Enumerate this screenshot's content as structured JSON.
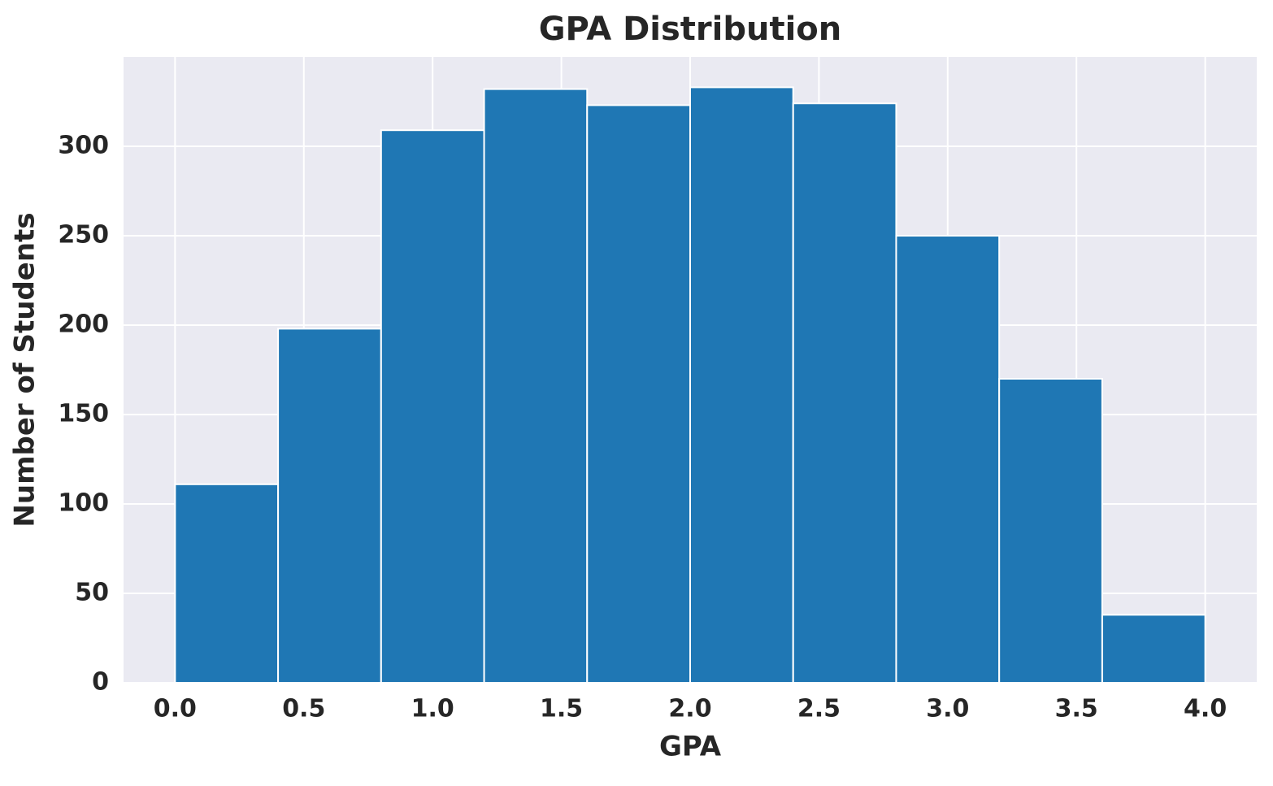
{
  "chart_data": {
    "type": "histogram",
    "title": "GPA Distribution",
    "xlabel": "GPA",
    "ylabel": "Number of Students",
    "bins": [
      0.0,
      0.4,
      0.8,
      1.2,
      1.6,
      2.0,
      2.4,
      2.8,
      3.2,
      3.6,
      4.0
    ],
    "values": [
      111,
      198,
      309,
      332,
      323,
      333,
      324,
      250,
      170,
      38
    ],
    "color": "#1f77b4",
    "xlim": [
      -0.2,
      4.2
    ],
    "xticks": [
      {
        "value": 0,
        "label": "0.0"
      },
      0.5,
      {
        "value": 1,
        "label": "1.0"
      },
      1.5,
      {
        "value": 2,
        "label": "2.0"
      },
      2.5,
      {
        "value": 3,
        "label": "3.0"
      },
      3.5,
      {
        "value": 4,
        "label": "4.0"
      }
    ],
    "ylim": [
      0,
      350
    ],
    "yticks": [
      0,
      50,
      100,
      150,
      200,
      250,
      300
    ],
    "grid": true
  }
}
